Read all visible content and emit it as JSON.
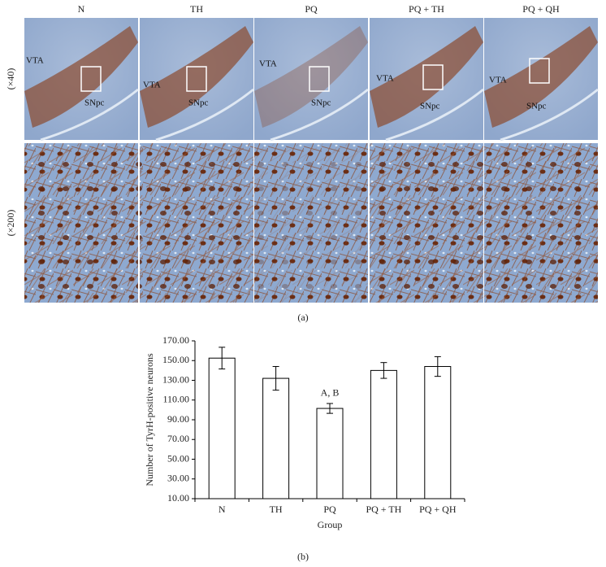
{
  "figure": {
    "columns": [
      "N",
      "TH",
      "PQ",
      "PQ + TH",
      "PQ + QH"
    ],
    "rows": [
      "(×40)",
      "(×200)"
    ],
    "region_labels": [
      "VTA",
      "SNpc"
    ],
    "panel_label": "(a)"
  },
  "chart_data": {
    "type": "bar",
    "categories": [
      "N",
      "TH",
      "PQ",
      "PQ + TH",
      "PQ + QH"
    ],
    "values": [
      152.5,
      132,
      101.5,
      140,
      144
    ],
    "errors": [
      11,
      12,
      5,
      8,
      10
    ],
    "color": "#ffffff",
    "ylabel": "Number of TyrH-positive neurons",
    "xlabel": "Group",
    "ylim": [
      10,
      170
    ],
    "yticks": [
      {
        "value": 10,
        "label": "10.00"
      },
      {
        "value": 30,
        "label": "30.00"
      },
      {
        "value": 50,
        "label": "50.00"
      },
      {
        "value": 70,
        "label": "70.00"
      },
      {
        "value": 90,
        "label": "90.00"
      },
      {
        "value": 110,
        "label": "110.00"
      },
      {
        "value": 130,
        "label": "130.00"
      },
      {
        "value": 150,
        "label": "150.00"
      },
      {
        "value": 170,
        "label": "170.00"
      }
    ],
    "annotations": [
      {
        "text": "A, B",
        "category": "PQ"
      }
    ],
    "panel_label": "(b)"
  }
}
